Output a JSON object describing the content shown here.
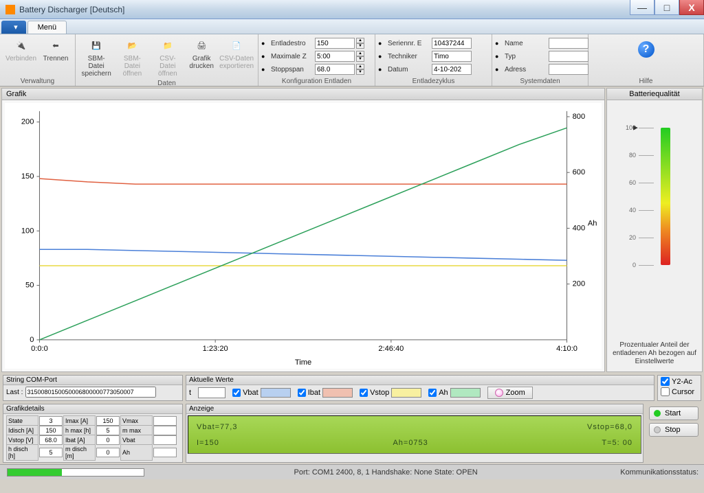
{
  "window": {
    "title": "Battery Discharger [Deutsch]"
  },
  "tabs": {
    "file": "",
    "menu": "Menü"
  },
  "ribbon": {
    "verwaltung": {
      "label": "Verwaltung",
      "verbinden": "Verbinden",
      "trennen": "Trennen"
    },
    "daten": {
      "label": "Daten",
      "sbm_save": "SBM-Datei\nspeichern",
      "sbm_open": "SBM-Datei\nöffnen",
      "csv_open": "CSV-Datei\nöffnen",
      "grafik": "Grafik\ndrucken",
      "csv_exp": "CSV-Daten\nexportieren"
    },
    "konfig": {
      "label": "Konfiguration Entladen",
      "rows": [
        {
          "k": "Entladestro",
          "v": "150"
        },
        {
          "k": "Maximale Z",
          "v": "5:00"
        },
        {
          "k": "Stoppspan",
          "v": "68.0"
        }
      ]
    },
    "zyklus": {
      "label": "Entladezyklus",
      "rows": [
        {
          "k": "Seriennr. E",
          "v": "10437244"
        },
        {
          "k": "Techniker",
          "v": "Timo"
        },
        {
          "k": "Datum",
          "v": "4-10-202"
        }
      ]
    },
    "system": {
      "label": "Systemdaten",
      "rows": [
        {
          "k": "Name",
          "v": ""
        },
        {
          "k": "Typ",
          "v": ""
        },
        {
          "k": "Adress",
          "v": ""
        }
      ]
    },
    "hilfe": {
      "label": "Hilfe"
    }
  },
  "chart": {
    "title": "Grafik",
    "xlabel": "Time",
    "y2label": "Ah",
    "xticks": [
      "0:0:0",
      "1:23:20",
      "2:46:40",
      "4:10:0"
    ],
    "y1ticks": [
      0,
      50,
      100,
      150,
      200
    ],
    "y2ticks": [
      200,
      400,
      600,
      800
    ],
    "y1lim": [
      0,
      210
    ],
    "y2lim": [
      0,
      820
    ],
    "series": {
      "vbat": {
        "color": "#4a7fd8",
        "y": [
          83,
          83,
          82,
          81,
          80,
          79,
          78,
          77,
          76,
          75,
          74,
          73
        ],
        "axis": "y1"
      },
      "ibat": {
        "color": "#e06040",
        "y": [
          148,
          145,
          143,
          143,
          143,
          143,
          143,
          143,
          143,
          143,
          143,
          143
        ],
        "axis": "y1"
      },
      "vstop": {
        "color": "#e8d840",
        "y": [
          68,
          68,
          68,
          68,
          68,
          68,
          68,
          68,
          68,
          68,
          68,
          68
        ],
        "axis": "y1"
      },
      "ah": {
        "color": "#2ca05a",
        "y": [
          0,
          70,
          140,
          210,
          280,
          350,
          420,
          490,
          560,
          630,
          700,
          760
        ],
        "axis": "y2"
      }
    },
    "grid_color": "#666",
    "background": "#ffffff"
  },
  "quality": {
    "title": "Batteriequalität",
    "ticks": [
      100,
      80,
      60,
      40,
      20,
      0
    ],
    "pointer": 100,
    "caption": "Prozentualer Anteil der entladenen Ah bezogen auf Einstellwerte"
  },
  "comport": {
    "title": "String COM-Port",
    "label": "Last :",
    "value": "3150080150050006800000773050007"
  },
  "werte": {
    "title": "Aktuelle Werte",
    "t_label": "t",
    "items": [
      {
        "name": "Vbat",
        "color": "#b8d0f0",
        "checked": true
      },
      {
        "name": "Ibat",
        "color": "#f0c0b0",
        "checked": true
      },
      {
        "name": "Vstop",
        "color": "#f8f0a0",
        "checked": true
      },
      {
        "name": "Ah",
        "color": "#b0e8c0",
        "checked": true
      }
    ],
    "zoom": "Zoom"
  },
  "sidechecks": {
    "y2": "Y2-Ac",
    "cursor": "Cursor",
    "y2_checked": true,
    "cursor_checked": false
  },
  "details": {
    "title": "Grafikdetails",
    "rows": [
      [
        {
          "k": "State",
          "v": "3"
        },
        {
          "k": "Imax [A]",
          "v": "150"
        },
        {
          "k": "Vmax",
          "v": ""
        }
      ],
      [
        {
          "k": "Idisch [A]",
          "v": "150"
        },
        {
          "k": "h max [h]",
          "v": "5"
        },
        {
          "k": "m max",
          "v": ""
        }
      ],
      [
        {
          "k": "Vstop [V]",
          "v": "68.0"
        },
        {
          "k": "Ibat [A]",
          "v": "0"
        },
        {
          "k": "Vbat",
          "v": ""
        }
      ],
      [
        {
          "k": "h disch [h]",
          "v": "5"
        },
        {
          "k": "m disch [m]",
          "v": "0"
        },
        {
          "k": "Ah",
          "v": ""
        }
      ]
    ]
  },
  "lcd": {
    "title": "Anzeige",
    "line1_left": "Vbat=77,3",
    "line1_right": "Vstop=68,0",
    "line2_left": "I=150",
    "line2_mid": "Ah=0753",
    "line2_right": "T=5: 00"
  },
  "actions": {
    "start": "Start",
    "stop": "Stop"
  },
  "status": {
    "mid": "Port: COM1  2400, 8, 1   Handshake: None   State: OPEN",
    "right": "Kommunikationsstatus:",
    "progress_pct": 40
  }
}
